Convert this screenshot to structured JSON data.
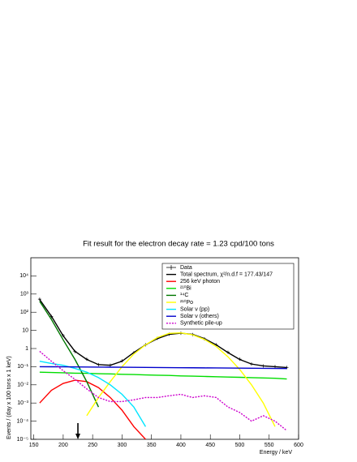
{
  "chart_data": {
    "type": "line",
    "title": "Fit result for the electron decay rate = 1.23 cpd/100 tons",
    "xlabel": "Energy / keV",
    "ylabel": "Events / (day x 100 tons x 1 keV)",
    "log_y": true,
    "xlim": [
      145,
      600
    ],
    "ylim": [
      1e-05,
      100000
    ],
    "xticks": [
      150,
      200,
      250,
      300,
      350,
      400,
      450,
      500,
      550,
      600
    ],
    "yticks": [
      {
        "value": 1e-05,
        "label": "10⁻⁵"
      },
      {
        "value": 0.0001,
        "label": "10⁻⁴"
      },
      {
        "value": 0.001,
        "label": "10⁻³"
      },
      {
        "value": 0.01,
        "label": "10⁻²"
      },
      {
        "value": 0.1,
        "label": "10⁻¹"
      },
      1,
      10,
      {
        "value": 100,
        "label": "10²"
      },
      {
        "value": 1000,
        "label": "10³"
      },
      {
        "value": 10000,
        "label": "10⁴"
      }
    ],
    "arrow_x": 225,
    "x": [
      160,
      180,
      200,
      220,
      240,
      260,
      280,
      300,
      320,
      340,
      360,
      380,
      400,
      420,
      440,
      460,
      480,
      500,
      520,
      540,
      560,
      580
    ],
    "series": [
      {
        "name": "Data",
        "color": "#000000",
        "style": "points",
        "values": [
          520,
          58,
          5.2,
          0.68,
          0.26,
          0.13,
          0.12,
          0.21,
          0.58,
          1.6,
          3.6,
          6.1,
          7.0,
          5.9,
          3.4,
          1.6,
          0.62,
          0.26,
          0.14,
          0.11,
          0.1,
          0.09
        ]
      },
      {
        "name": "Total spectrum, χ²/n.d.f = 177.43/147",
        "color": "#000000",
        "style": "solid",
        "values": [
          500,
          60,
          5,
          0.7,
          0.25,
          0.13,
          0.12,
          0.2,
          0.6,
          1.6,
          3.5,
          6,
          7,
          6,
          3.5,
          1.6,
          0.6,
          0.25,
          0.14,
          0.11,
          0.1,
          0.09
        ]
      },
      {
        "name": "256 keV photon",
        "color": "#ff0000",
        "style": "solid",
        "values": [
          0.001,
          0.005,
          0.012,
          0.018,
          0.015,
          0.007,
          0.002,
          0.0004,
          5e-05,
          1e-05,
          null,
          null,
          null,
          null,
          null,
          null,
          null,
          null,
          null,
          null,
          null,
          null
        ]
      },
      {
        "name": "²¹⁰Bi",
        "color": "#00dd00",
        "style": "solid",
        "values": [
          0.05,
          0.048,
          0.046,
          0.044,
          0.043,
          0.041,
          0.04,
          0.038,
          0.037,
          0.035,
          0.034,
          0.033,
          0.031,
          0.03,
          0.029,
          0.028,
          0.027,
          0.026,
          0.025,
          0.024,
          0.023,
          0.021
        ]
      },
      {
        "name": "¹⁴C",
        "color": "#007700",
        "style": "solid",
        "values": [
          400,
          40,
          3,
          0.25,
          0.015,
          0.0006,
          null,
          null,
          null,
          null,
          null,
          null,
          null,
          null,
          null,
          null,
          null,
          null,
          null,
          null,
          null,
          null
        ]
      },
      {
        "name": "²¹⁰Po",
        "color": "#ffff00",
        "style": "solid",
        "values": [
          null,
          null,
          null,
          null,
          0.0002,
          0.002,
          0.015,
          0.1,
          0.5,
          1.6,
          4,
          6.8,
          7.3,
          5.7,
          3.2,
          1.3,
          0.35,
          0.07,
          0.01,
          0.001,
          5e-05,
          null
        ]
      },
      {
        "name": "Solar ν (pp)",
        "color": "#00e5ff",
        "style": "solid",
        "values": [
          0.2,
          0.15,
          0.12,
          0.08,
          0.05,
          0.025,
          0.01,
          0.003,
          0.0006,
          5e-05,
          null,
          null,
          null,
          null,
          null,
          null,
          null,
          null,
          null,
          null,
          null,
          null
        ]
      },
      {
        "name": "Solar ν (others)",
        "color": "#0000cc",
        "style": "solid",
        "values": [
          0.1,
          0.099,
          0.098,
          0.097,
          0.096,
          0.095,
          0.094,
          0.093,
          0.092,
          0.091,
          0.09,
          0.089,
          0.088,
          0.087,
          0.086,
          0.085,
          0.084,
          0.083,
          0.082,
          0.081,
          0.08,
          0.079
        ]
      },
      {
        "name": "Synthetic pile-up",
        "color": "#cc00cc",
        "style": "dashed",
        "values": [
          0.7,
          0.2,
          0.06,
          0.02,
          0.006,
          0.002,
          0.0012,
          0.0012,
          0.0015,
          0.002,
          0.002,
          0.0025,
          0.003,
          0.002,
          0.0025,
          0.002,
          0.0006,
          0.0003,
          0.0001,
          0.0002,
          0.0001,
          3e-05
        ]
      }
    ]
  }
}
